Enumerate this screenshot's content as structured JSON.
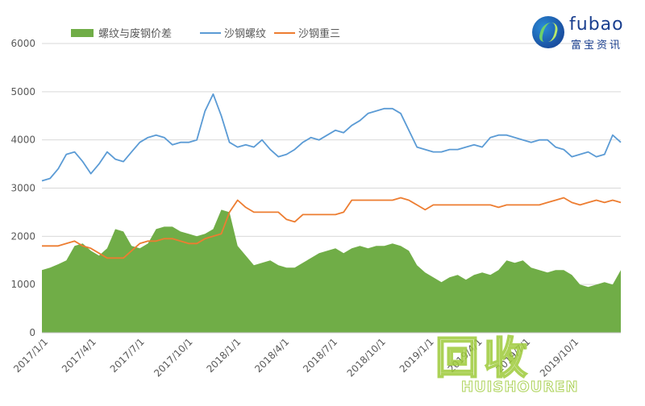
{
  "chart_data": {
    "type": "area",
    "title": "",
    "xlabel": "",
    "ylabel": "",
    "ylim": [
      0,
      6000
    ],
    "yticks": [
      0,
      1000,
      2000,
      3000,
      4000,
      5000,
      6000
    ],
    "xticks": [
      "2017/1/1",
      "2017/4/1",
      "2017/7/1",
      "2017/10/1",
      "2018/1/1",
      "2018/4/1",
      "2018/7/1",
      "2018/10/1",
      "2019/1/1",
      "2019/4/1",
      "2019/7/1",
      "2019/10/1"
    ],
    "legend_position": "top",
    "x": [
      "2017/1/1",
      "2017/1/15",
      "2017/2/1",
      "2017/2/15",
      "2017/3/1",
      "2017/3/15",
      "2017/4/1",
      "2017/4/15",
      "2017/5/1",
      "2017/5/15",
      "2017/6/1",
      "2017/6/15",
      "2017/7/1",
      "2017/7/15",
      "2017/8/1",
      "2017/8/15",
      "2017/9/1",
      "2017/9/15",
      "2017/10/1",
      "2017/10/15",
      "2017/11/1",
      "2017/11/10",
      "2017/11/20",
      "2017/12/1",
      "2017/12/15",
      "2018/1/1",
      "2018/1/15",
      "2018/2/1",
      "2018/2/15",
      "2018/3/1",
      "2018/3/15",
      "2018/4/1",
      "2018/4/15",
      "2018/5/1",
      "2018/5/15",
      "2018/6/1",
      "2018/6/15",
      "2018/7/1",
      "2018/7/15",
      "2018/8/1",
      "2018/8/15",
      "2018/9/1",
      "2018/9/15",
      "2018/10/1",
      "2018/10/15",
      "2018/11/1",
      "2018/11/15",
      "2018/12/1",
      "2018/12/15",
      "2019/1/1",
      "2019/1/15",
      "2019/2/1",
      "2019/2/15",
      "2019/3/1",
      "2019/3/15",
      "2019/4/1",
      "2019/4/15",
      "2019/5/1",
      "2019/5/15",
      "2019/6/1",
      "2019/6/15",
      "2019/7/1",
      "2019/7/15",
      "2019/8/1",
      "2019/8/15",
      "2019/9/1",
      "2019/9/15",
      "2019/10/1",
      "2019/10/15",
      "2019/11/1",
      "2019/11/15",
      "2019/12/1"
    ],
    "series": [
      {
        "name": "螺纹与废钢价差",
        "type": "area",
        "color": "#70ad47",
        "values": [
          1300,
          1350,
          1420,
          1500,
          1800,
          1850,
          1700,
          1600,
          1750,
          2150,
          2100,
          1800,
          1750,
          1850,
          2150,
          2200,
          2200,
          2100,
          2050,
          2000,
          2050,
          2150,
          2550,
          2500,
          1800,
          1600,
          1400,
          1450,
          1500,
          1400,
          1350,
          1350,
          1450,
          1550,
          1650,
          1700,
          1750,
          1650,
          1750,
          1800,
          1750,
          1800,
          1800,
          1850,
          1800,
          1700,
          1400,
          1250,
          1150,
          1050,
          1150,
          1200,
          1100,
          1200,
          1250,
          1200,
          1300,
          1500,
          1450,
          1500,
          1350,
          1300,
          1250,
          1300,
          1300,
          1200,
          1000,
          950,
          1000,
          1050,
          1000,
          1300
        ]
      },
      {
        "name": "沙钢螺纹",
        "type": "line",
        "color": "#5b9bd5",
        "values": [
          3150,
          3200,
          3400,
          3700,
          3750,
          3550,
          3300,
          3500,
          3750,
          3600,
          3550,
          3750,
          3950,
          4050,
          4100,
          4050,
          3900,
          3950,
          3950,
          4000,
          4600,
          4950,
          4500,
          3950,
          3850,
          3900,
          3850,
          4000,
          3800,
          3650,
          3700,
          3800,
          3950,
          4050,
          4000,
          4100,
          4200,
          4150,
          4300,
          4400,
          4550,
          4600,
          4650,
          4650,
          4550,
          4200,
          3850,
          3800,
          3750,
          3750,
          3800,
          3800,
          3850,
          3900,
          3850,
          4050,
          4100,
          4100,
          4050,
          4000,
          3950,
          4000,
          4000,
          3850,
          3800,
          3650,
          3700,
          3750,
          3650,
          3700,
          4100,
          3950
        ]
      },
      {
        "name": "沙钢重三",
        "type": "line",
        "color": "#ed7d31",
        "values": [
          1800,
          1800,
          1800,
          1850,
          1900,
          1800,
          1750,
          1650,
          1550,
          1550,
          1550,
          1700,
          1850,
          1900,
          1900,
          1950,
          1950,
          1900,
          1850,
          1850,
          1950,
          2000,
          2050,
          2500,
          2750,
          2600,
          2500,
          2500,
          2500,
          2500,
          2350,
          2300,
          2450,
          2450,
          2450,
          2450,
          2450,
          2500,
          2750,
          2750,
          2750,
          2750,
          2750,
          2750,
          2800,
          2750,
          2650,
          2550,
          2650,
          2650,
          2650,
          2650,
          2650,
          2650,
          2650,
          2650,
          2600,
          2650,
          2650,
          2650,
          2650,
          2650,
          2700,
          2750,
          2800,
          2700,
          2650,
          2700,
          2750,
          2700,
          2750,
          2700
        ]
      }
    ]
  },
  "brand": {
    "name": "fubao",
    "subtitle": "富宝资讯"
  },
  "watermark": {
    "cn": "回收",
    "en": "HUISHOUREN"
  }
}
